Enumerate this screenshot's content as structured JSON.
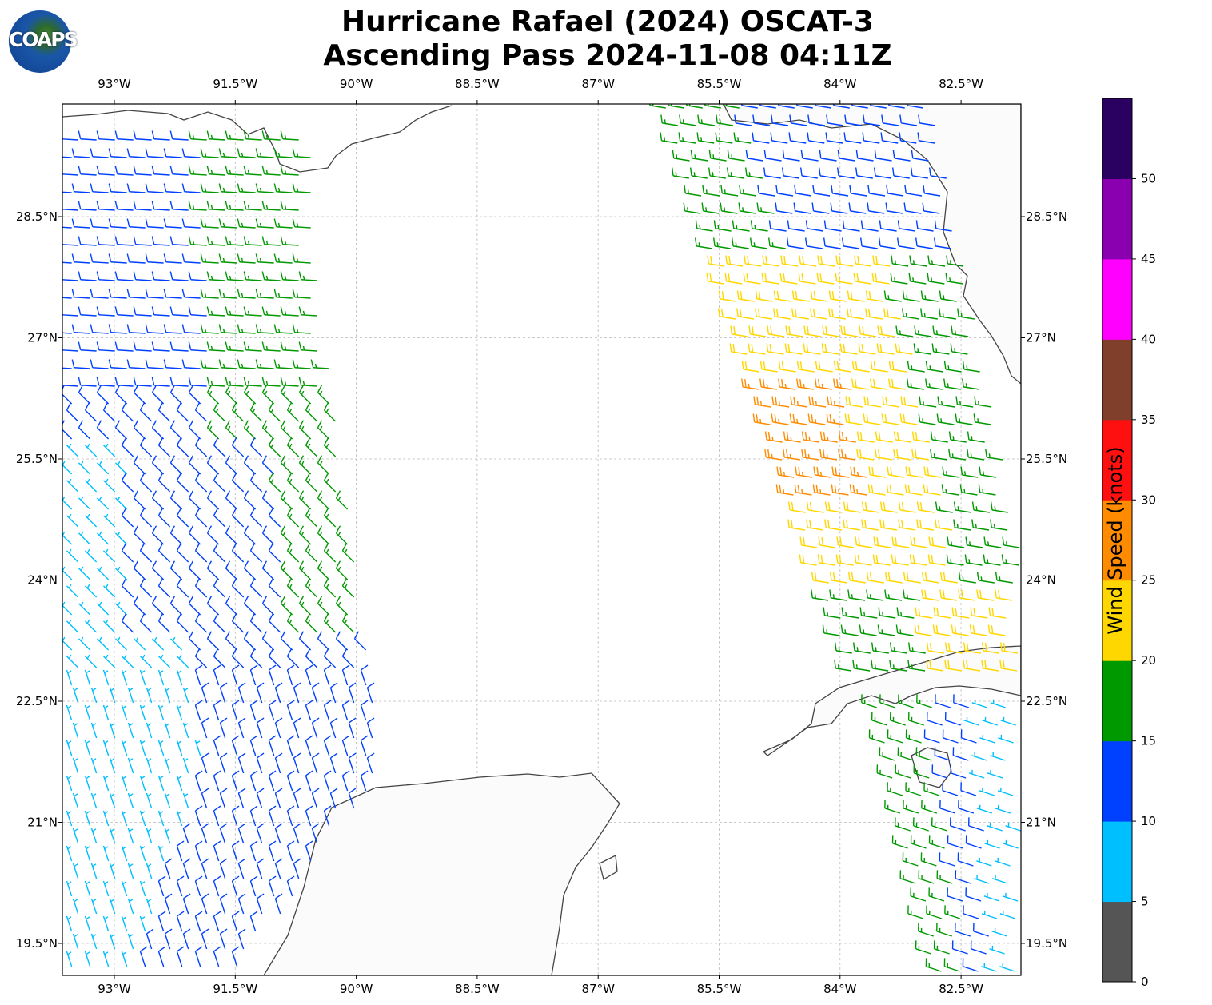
{
  "title": {
    "line1": "Hurricane Rafael (2024) OSCAT-3",
    "line2": "Ascending Pass 2024-11-08 04:11Z"
  },
  "logo": {
    "text": "COAPS"
  },
  "map": {
    "lon_ticks": [
      "93°W",
      "91.5°W",
      "90°W",
      "88.5°W",
      "87°W",
      "85.5°W",
      "84°W",
      "82.5°W"
    ],
    "lat_ticks": [
      "28.5°N",
      "27°N",
      "25.5°N",
      "24°N",
      "22.5°N",
      "21°N",
      "19.5°N"
    ]
  },
  "colorbar": {
    "label": "Wind Speed (knots)",
    "ticks": [
      "0",
      "5",
      "10",
      "15",
      "20",
      "25",
      "30",
      "35",
      "40",
      "45",
      "50"
    ],
    "colors": [
      "#555555",
      "#00bfff",
      "#0040ff",
      "#009900",
      "#ffd700",
      "#ff8c00",
      "#ff1010",
      "#7f3f2a",
      "#ff00ff",
      "#8a00b0",
      "#2a0060"
    ]
  }
}
